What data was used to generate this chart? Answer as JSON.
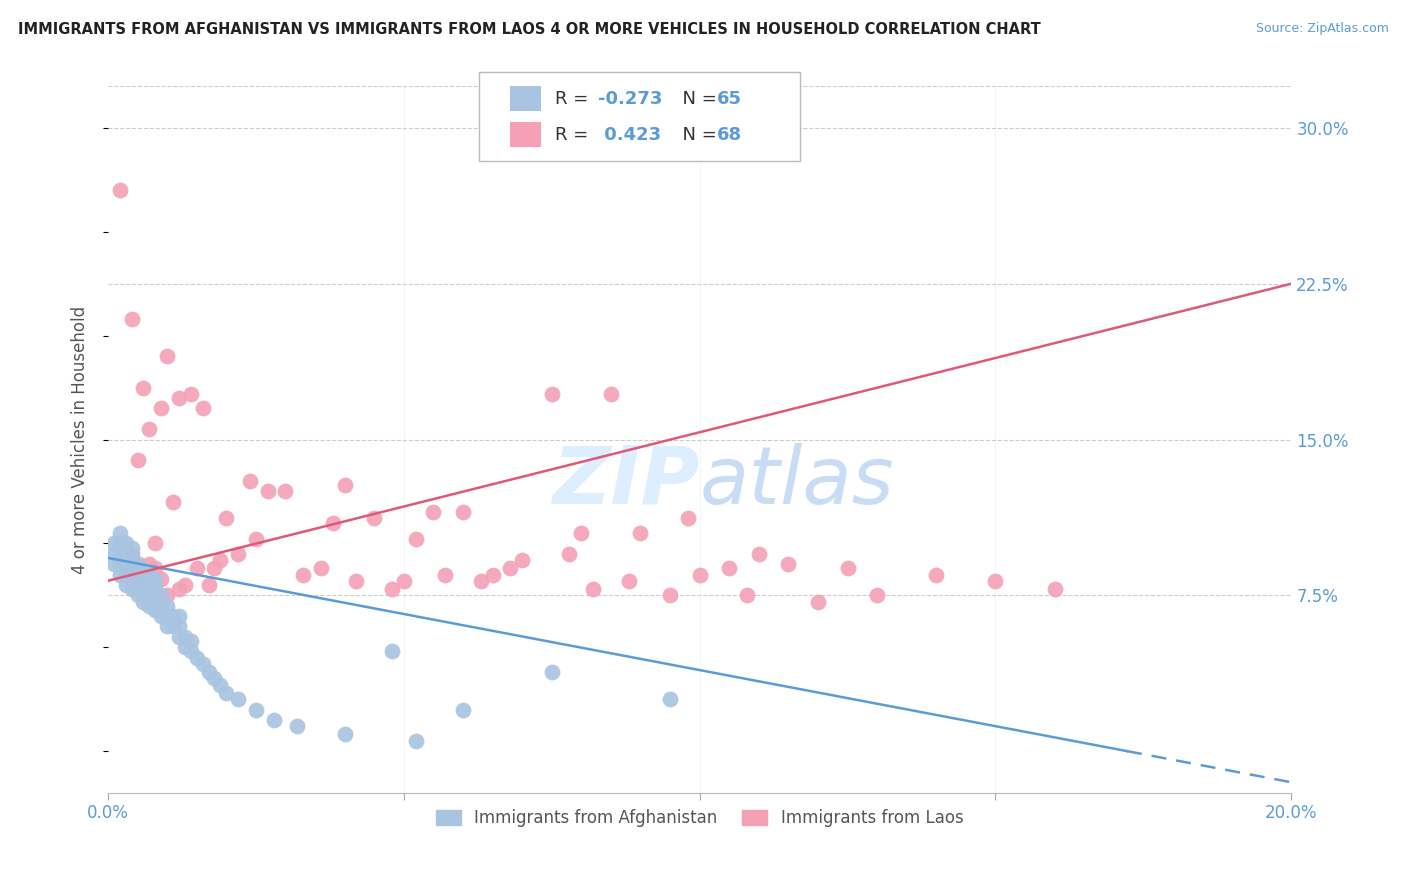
{
  "title": "IMMIGRANTS FROM AFGHANISTAN VS IMMIGRANTS FROM LAOS 4 OR MORE VEHICLES IN HOUSEHOLD CORRELATION CHART",
  "source": "Source: ZipAtlas.com",
  "ylabel": "4 or more Vehicles in Household",
  "xlim": [
    0.0,
    0.2
  ],
  "ylim": [
    -0.02,
    0.32
  ],
  "afghanistan_R": -0.273,
  "afghanistan_N": 65,
  "laos_R": 0.423,
  "laos_N": 68,
  "afghanistan_color": "#a8c4e0",
  "laos_color": "#f4a0b5",
  "afghanistan_line_color": "#5b9bd5",
  "laos_line_color": "#e05878",
  "bg_color": "#ffffff",
  "grid_color": "#cccccc",
  "title_color": "#222222",
  "axis_label_color": "#555555",
  "tick_color": "#5b9bd5",
  "watermark_color": "#ddeeff",
  "afghanistan_x": [
    0.001,
    0.001,
    0.001,
    0.002,
    0.002,
    0.002,
    0.002,
    0.002,
    0.003,
    0.003,
    0.003,
    0.003,
    0.003,
    0.004,
    0.004,
    0.004,
    0.004,
    0.004,
    0.005,
    0.005,
    0.005,
    0.005,
    0.006,
    0.006,
    0.006,
    0.006,
    0.007,
    0.007,
    0.007,
    0.007,
    0.008,
    0.008,
    0.008,
    0.008,
    0.009,
    0.009,
    0.009,
    0.01,
    0.01,
    0.01,
    0.011,
    0.011,
    0.012,
    0.012,
    0.012,
    0.013,
    0.013,
    0.014,
    0.014,
    0.015,
    0.016,
    0.017,
    0.018,
    0.019,
    0.02,
    0.022,
    0.025,
    0.028,
    0.032,
    0.04,
    0.048,
    0.052,
    0.06,
    0.075,
    0.095
  ],
  "afghanistan_y": [
    0.09,
    0.095,
    0.1,
    0.085,
    0.09,
    0.095,
    0.1,
    0.105,
    0.08,
    0.085,
    0.09,
    0.095,
    0.1,
    0.078,
    0.083,
    0.088,
    0.093,
    0.098,
    0.075,
    0.08,
    0.085,
    0.09,
    0.072,
    0.077,
    0.082,
    0.087,
    0.07,
    0.075,
    0.08,
    0.085,
    0.068,
    0.073,
    0.078,
    0.083,
    0.065,
    0.07,
    0.075,
    0.06,
    0.065,
    0.07,
    0.06,
    0.065,
    0.055,
    0.06,
    0.065,
    0.05,
    0.055,
    0.048,
    0.053,
    0.045,
    0.042,
    0.038,
    0.035,
    0.032,
    0.028,
    0.025,
    0.02,
    0.015,
    0.012,
    0.008,
    0.048,
    0.005,
    0.02,
    0.038,
    0.025
  ],
  "laos_x": [
    0.002,
    0.003,
    0.004,
    0.004,
    0.005,
    0.005,
    0.006,
    0.006,
    0.007,
    0.007,
    0.008,
    0.008,
    0.009,
    0.009,
    0.01,
    0.01,
    0.011,
    0.012,
    0.012,
    0.013,
    0.014,
    0.015,
    0.016,
    0.017,
    0.018,
    0.019,
    0.02,
    0.022,
    0.024,
    0.025,
    0.027,
    0.03,
    0.033,
    0.036,
    0.038,
    0.04,
    0.042,
    0.045,
    0.048,
    0.05,
    0.052,
    0.055,
    0.057,
    0.06,
    0.063,
    0.065,
    0.068,
    0.07,
    0.075,
    0.078,
    0.08,
    0.082,
    0.085,
    0.088,
    0.09,
    0.095,
    0.098,
    0.1,
    0.105,
    0.108,
    0.11,
    0.115,
    0.12,
    0.125,
    0.13,
    0.14,
    0.15,
    0.16
  ],
  "laos_y": [
    0.27,
    0.085,
    0.208,
    0.095,
    0.14,
    0.09,
    0.175,
    0.085,
    0.155,
    0.09,
    0.1,
    0.088,
    0.165,
    0.083,
    0.19,
    0.075,
    0.12,
    0.17,
    0.078,
    0.08,
    0.172,
    0.088,
    0.165,
    0.08,
    0.088,
    0.092,
    0.112,
    0.095,
    0.13,
    0.102,
    0.125,
    0.125,
    0.085,
    0.088,
    0.11,
    0.128,
    0.082,
    0.112,
    0.078,
    0.082,
    0.102,
    0.115,
    0.085,
    0.115,
    0.082,
    0.085,
    0.088,
    0.092,
    0.172,
    0.095,
    0.105,
    0.078,
    0.172,
    0.082,
    0.105,
    0.075,
    0.112,
    0.085,
    0.088,
    0.075,
    0.095,
    0.09,
    0.072,
    0.088,
    0.075,
    0.085,
    0.082,
    0.078
  ],
  "af_line_x0": 0.0,
  "af_line_y0": 0.093,
  "af_line_x1": 0.2,
  "af_line_y1": -0.015,
  "laos_line_x0": 0.0,
  "laos_line_y0": 0.082,
  "laos_line_x1": 0.2,
  "laos_line_y1": 0.225
}
